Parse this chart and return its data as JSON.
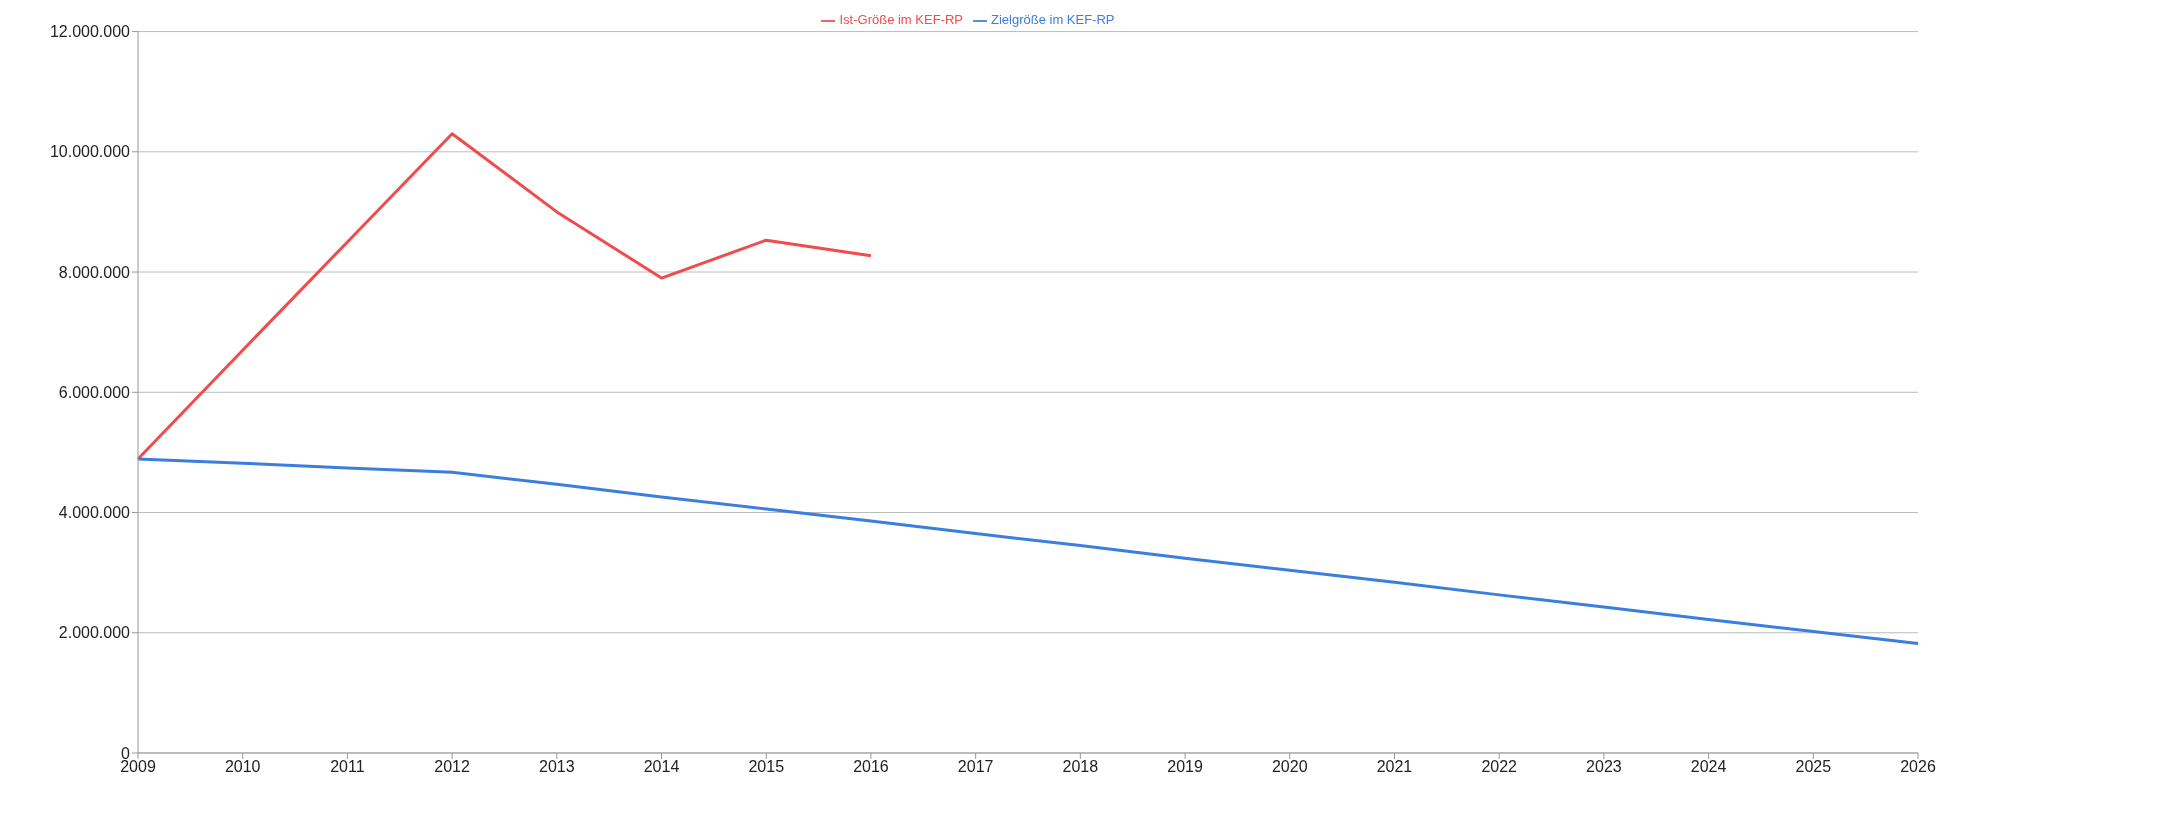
{
  "chart_data": {
    "type": "line",
    "categories": [
      "2009",
      "2010",
      "2011",
      "2012",
      "2013",
      "2014",
      "2015",
      "2016",
      "2017",
      "2018",
      "2019",
      "2020",
      "2021",
      "2022",
      "2023",
      "2024",
      "2025",
      "2026"
    ],
    "series": [
      {
        "name": "Ist-Größe im KEF-RP",
        "color": "#f04c4c",
        "values": [
          4890000,
          6700000,
          8500000,
          10300000,
          9000000,
          7900000,
          8530000,
          8270000,
          null,
          null,
          null,
          null,
          null,
          null,
          null,
          null,
          null,
          null
        ]
      },
      {
        "name": "Zielgröße im KEF-RP",
        "color": "#3c7ede",
        "values": [
          4890000,
          4820000,
          4740000,
          4670000,
          4470000,
          4260000,
          4060000,
          3860000,
          3650000,
          3450000,
          3240000,
          3040000,
          2840000,
          2630000,
          2430000,
          2220000,
          2020000,
          1820000
        ]
      }
    ],
    "ylim": [
      0,
      12000000
    ],
    "yticks": [
      0,
      {
        "value": 2000000,
        "label": "2.000.000"
      },
      {
        "value": 4000000,
        "label": "4.000.000"
      },
      {
        "value": 6000000,
        "label": "6.000.000"
      },
      {
        "value": 8000000,
        "label": "8.000.000"
      },
      {
        "value": 10000000,
        "label": "10.000.000"
      },
      {
        "value": 12000000,
        "label": "12.000.000"
      }
    ],
    "grid": "y",
    "legend": "top",
    "marker": "none",
    "line_style": "solid"
  }
}
